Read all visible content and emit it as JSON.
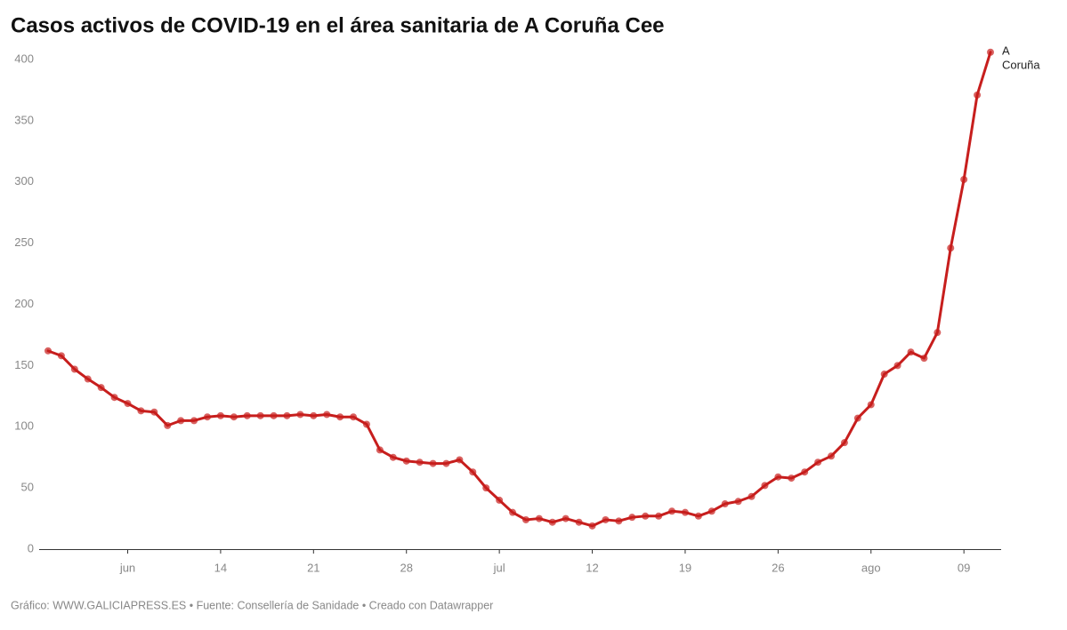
{
  "chart_data": {
    "type": "line",
    "title": "Casos activos de COVID-19 en el área sanitaria de A Coruña Cee",
    "footer": "Gráfico: WWW.GALICIAPRESS.ES • Fuente: Consellería de Sanidade • Creado con Datawrapper",
    "x": [
      "06-01",
      "06-02",
      "06-03",
      "06-04",
      "06-05",
      "06-06",
      "06-07",
      "06-08",
      "06-09",
      "06-10",
      "06-11",
      "06-12",
      "06-13",
      "06-14",
      "06-15",
      "06-16",
      "06-17",
      "06-18",
      "06-19",
      "06-20",
      "06-21",
      "06-22",
      "06-23",
      "06-24",
      "06-25",
      "06-26",
      "06-27",
      "06-28",
      "06-29",
      "06-30",
      "07-01",
      "07-02",
      "07-03",
      "07-04",
      "07-05",
      "07-06",
      "07-07",
      "07-08",
      "07-09",
      "07-10",
      "07-11",
      "07-12",
      "07-13",
      "07-14",
      "07-15",
      "07-16",
      "07-17",
      "07-18",
      "07-19",
      "07-20",
      "07-21",
      "07-22",
      "07-23",
      "07-24",
      "07-25",
      "07-26",
      "07-27",
      "07-28",
      "07-29",
      "07-30",
      "07-31",
      "08-01",
      "08-02",
      "08-03",
      "08-04",
      "08-05",
      "08-06",
      "08-07",
      "08-08",
      "08-09",
      "08-10",
      "08-11"
    ],
    "series": [
      {
        "name": "A Coruña",
        "color": "#c71e1d",
        "values": [
          162,
          158,
          147,
          139,
          132,
          124,
          119,
          113,
          112,
          101,
          105,
          105,
          108,
          109,
          108,
          109,
          109,
          109,
          109,
          110,
          109,
          110,
          108,
          108,
          102,
          81,
          75,
          72,
          71,
          70,
          70,
          73,
          63,
          50,
          40,
          30,
          24,
          25,
          22,
          25,
          22,
          19,
          24,
          23,
          26,
          27,
          27,
          31,
          30,
          27,
          31,
          37,
          39,
          43,
          52,
          59,
          58,
          63,
          71,
          76,
          87,
          107,
          118,
          143,
          150,
          161,
          156,
          177,
          246,
          302,
          371,
          406
        ]
      }
    ],
    "xlim": [
      "06-01",
      "08-11"
    ],
    "xticks": [
      {
        "value": "06-07",
        "label": "jun"
      },
      {
        "value": "06-14",
        "label": "14"
      },
      {
        "value": "06-21",
        "label": "21"
      },
      {
        "value": "06-28",
        "label": "28"
      },
      {
        "value": "07-05",
        "label": "jul"
      },
      {
        "value": "07-12",
        "label": "12"
      },
      {
        "value": "07-19",
        "label": "19"
      },
      {
        "value": "07-26",
        "label": "26"
      },
      {
        "value": "08-02",
        "label": "ago"
      },
      {
        "value": "08-09",
        "label": "09"
      }
    ],
    "ylim": [
      0,
      400
    ],
    "yticks": [
      0,
      50,
      100,
      150,
      200,
      250,
      300,
      350,
      400
    ],
    "grid": false
  }
}
